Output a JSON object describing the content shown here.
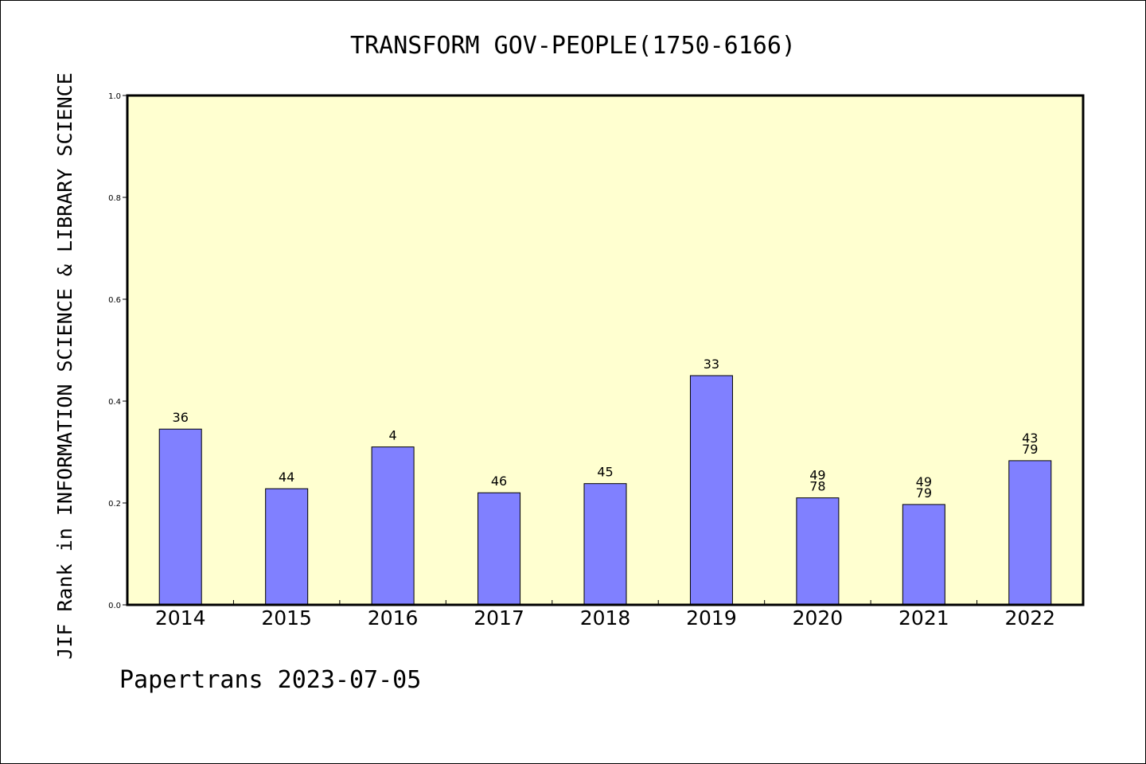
{
  "chart_data": {
    "type": "bar",
    "title": "TRANSFORM GOV-PEOPLE(1750-6166)",
    "xlabel": "",
    "ylabel": "JIF Rank in INFORMATION SCIENCE & LIBRARY SCIENCE",
    "ylim": [
      0,
      1
    ],
    "yticks": [
      "0.0",
      "0.2",
      "0.4",
      "0.6",
      "0.8",
      "1.0"
    ],
    "categories": [
      "2014",
      "2015",
      "2016",
      "2017",
      "2018",
      "2019",
      "2020",
      "2021",
      "2022"
    ],
    "values": [
      0.345,
      0.228,
      0.31,
      0.22,
      0.238,
      0.45,
      0.21,
      0.197,
      0.283
    ],
    "labels": [
      [
        "36"
      ],
      [
        "44"
      ],
      [
        "4"
      ],
      [
        "46"
      ],
      [
        "45"
      ],
      [
        "33"
      ],
      [
        "49",
        "78"
      ],
      [
        "49",
        "79"
      ],
      [
        "43",
        "79"
      ]
    ],
    "bar_color": "#8080ff",
    "plot_background": "#ffffd0",
    "grid": false,
    "legend": "none"
  },
  "footer": "Papertrans 2023-07-05"
}
